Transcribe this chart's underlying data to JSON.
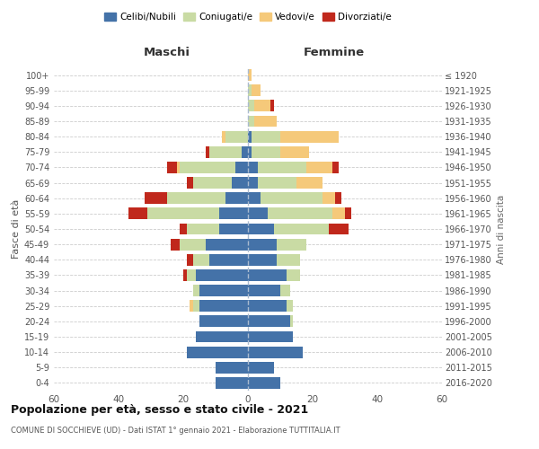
{
  "age_groups": [
    "0-4",
    "5-9",
    "10-14",
    "15-19",
    "20-24",
    "25-29",
    "30-34",
    "35-39",
    "40-44",
    "45-49",
    "50-54",
    "55-59",
    "60-64",
    "65-69",
    "70-74",
    "75-79",
    "80-84",
    "85-89",
    "90-94",
    "95-99",
    "100+"
  ],
  "birth_years": [
    "2016-2020",
    "2011-2015",
    "2006-2010",
    "2001-2005",
    "1996-2000",
    "1991-1995",
    "1986-1990",
    "1981-1985",
    "1976-1980",
    "1971-1975",
    "1966-1970",
    "1961-1965",
    "1956-1960",
    "1951-1955",
    "1946-1950",
    "1941-1945",
    "1936-1940",
    "1931-1935",
    "1926-1930",
    "1921-1925",
    "≤ 1920"
  ],
  "maschi": {
    "celibi": [
      10,
      10,
      19,
      16,
      15,
      15,
      15,
      16,
      12,
      13,
      9,
      9,
      7,
      5,
      4,
      2,
      0,
      0,
      0,
      0,
      0
    ],
    "coniugati": [
      0,
      0,
      0,
      0,
      0,
      2,
      2,
      3,
      5,
      8,
      10,
      22,
      18,
      12,
      17,
      10,
      7,
      0,
      0,
      0,
      0
    ],
    "vedovi": [
      0,
      0,
      0,
      0,
      0,
      1,
      0,
      0,
      0,
      0,
      0,
      0,
      0,
      0,
      1,
      0,
      1,
      0,
      0,
      0,
      0
    ],
    "divorziati": [
      0,
      0,
      0,
      0,
      0,
      0,
      0,
      1,
      2,
      3,
      2,
      6,
      7,
      2,
      3,
      1,
      0,
      0,
      0,
      0,
      0
    ]
  },
  "femmine": {
    "nubili": [
      10,
      8,
      17,
      14,
      13,
      12,
      10,
      12,
      9,
      9,
      8,
      6,
      4,
      3,
      3,
      1,
      1,
      0,
      0,
      0,
      0
    ],
    "coniugate": [
      0,
      0,
      0,
      0,
      1,
      2,
      3,
      4,
      7,
      9,
      17,
      20,
      19,
      12,
      15,
      9,
      9,
      2,
      2,
      1,
      0
    ],
    "vedove": [
      0,
      0,
      0,
      0,
      0,
      0,
      0,
      0,
      0,
      0,
      0,
      4,
      4,
      8,
      8,
      9,
      18,
      7,
      5,
      3,
      1
    ],
    "divorziate": [
      0,
      0,
      0,
      0,
      0,
      0,
      0,
      0,
      0,
      0,
      6,
      2,
      2,
      0,
      2,
      0,
      0,
      0,
      1,
      0,
      0
    ]
  },
  "colors": {
    "celibi": "#4472a8",
    "coniugati": "#c9dba4",
    "vedovi": "#f5c97a",
    "divorziati": "#c0281c"
  },
  "xlim": 60,
  "title": "Popolazione per età, sesso e stato civile - 2021",
  "subtitle": "COMUNE DI SOCCHIEVE (UD) - Dati ISTAT 1° gennaio 2021 - Elaborazione TUTTITALIA.IT",
  "ylabel": "Fasce di età",
  "ylabel_right": "Anni di nascita",
  "xlabel_left": "Maschi",
  "xlabel_right": "Femmine"
}
